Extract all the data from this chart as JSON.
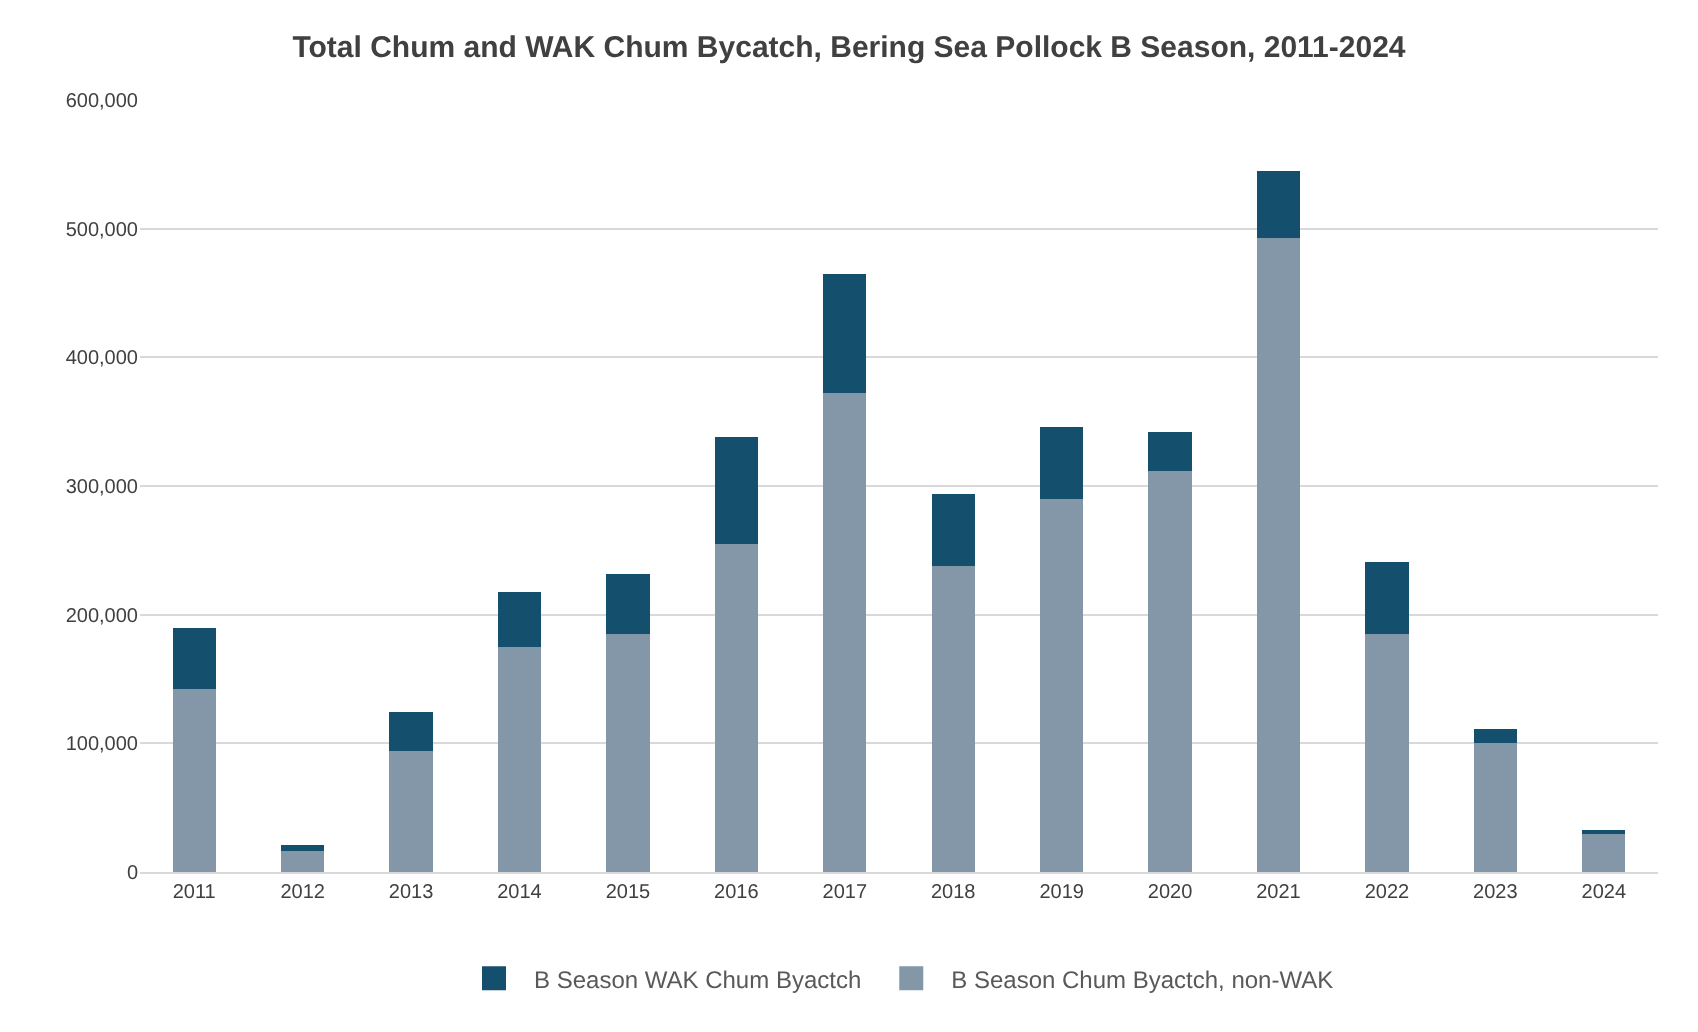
{
  "chart_data": {
    "type": "bar",
    "title": "Total Chum and WAK Chum Bycatch, Bering Sea Pollock B Season, 2011-2024",
    "categories": [
      "2011",
      "2012",
      "2013",
      "2014",
      "2015",
      "2016",
      "2017",
      "2018",
      "2019",
      "2020",
      "2021",
      "2022",
      "2023",
      "2024"
    ],
    "series": [
      {
        "name": "B Season Chum Byactch, non-WAK",
        "color": "#8497a9",
        "values": [
          142000,
          16000,
          94000,
          175000,
          185000,
          255000,
          372000,
          238000,
          290000,
          312000,
          493000,
          185000,
          100000,
          30000
        ]
      },
      {
        "name": "B Season WAK Chum Byactch",
        "color": "#14506e",
        "values": [
          48000,
          5000,
          30000,
          43000,
          47000,
          83000,
          93000,
          56000,
          56000,
          30000,
          52000,
          56000,
          11000,
          3000
        ]
      }
    ],
    "stacked": true,
    "ylim": [
      0,
      600000
    ],
    "yticks": [
      {
        "value": 0,
        "label": "0"
      },
      {
        "value": 100000,
        "label": "100,000"
      },
      {
        "value": 200000,
        "label": "200,000"
      },
      {
        "value": 300000,
        "label": "300,000"
      },
      {
        "value": 400000,
        "label": "400,000"
      },
      {
        "value": 500000,
        "label": "500,000"
      },
      {
        "value": 600000,
        "label": "600,000"
      }
    ],
    "grid": "y",
    "legend": "bottom"
  }
}
